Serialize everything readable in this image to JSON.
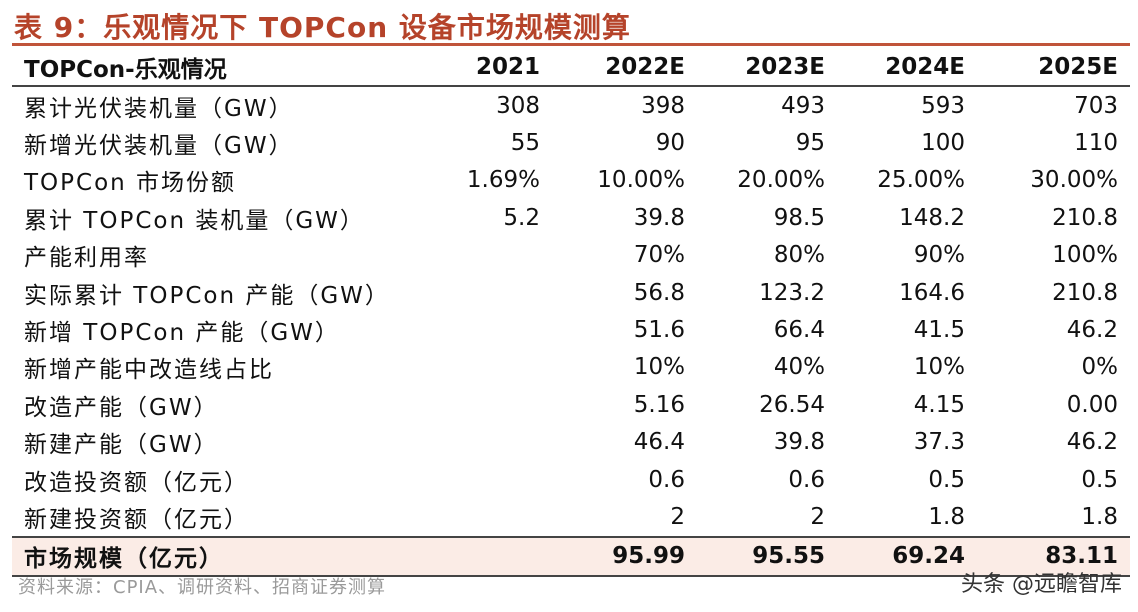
{
  "title": "表 9：乐观情况下 TOPCon 设备市场规模测算",
  "table": {
    "headers": [
      "TOPCon-乐观情况",
      "2021",
      "2022E",
      "2023E",
      "2024E",
      "2025E"
    ],
    "rows": [
      [
        "累计光伏装机量（GW）",
        "308",
        "398",
        "493",
        "593",
        "703"
      ],
      [
        "新增光伏装机量（GW）",
        "55",
        "90",
        "95",
        "100",
        "110"
      ],
      [
        "TOPCon 市场份额",
        "1.69%",
        "10.00%",
        "20.00%",
        "25.00%",
        "30.00%"
      ],
      [
        "累计 TOPCon 装机量（GW）",
        "5.2",
        "39.8",
        "98.5",
        "148.2",
        "210.8"
      ],
      [
        "产能利用率",
        "",
        "70%",
        "80%",
        "90%",
        "100%"
      ],
      [
        "实际累计 TOPCon 产能（GW）",
        "",
        "56.8",
        "123.2",
        "164.6",
        "210.8"
      ],
      [
        "新增 TOPCon 产能（GW）",
        "",
        "51.6",
        "66.4",
        "41.5",
        "46.2"
      ],
      [
        "新增产能中改造线占比",
        "",
        "10%",
        "40%",
        "10%",
        "0%"
      ],
      [
        "改造产能（GW）",
        "",
        "5.16",
        "26.54",
        "4.15",
        "0.00"
      ],
      [
        "新建产能（GW）",
        "",
        "46.4",
        "39.8",
        "37.3",
        "46.2"
      ],
      [
        "改造投资额（亿元）",
        "",
        "0.6",
        "0.6",
        "0.5",
        "0.5"
      ],
      [
        "新建投资额（亿元）",
        "",
        "2",
        "2",
        "1.8",
        "1.8"
      ]
    ],
    "total": [
      "市场规模（亿元）",
      "",
      "95.99",
      "95.55",
      "69.24",
      "83.11"
    ]
  },
  "source": "资料来源：CPIA、调研资料、招商证券测算",
  "watermark": "头条 @远瞻智库",
  "colors": {
    "title": "#b5432a",
    "rule": "#c0543a",
    "total_row_bg": "#fbece6",
    "source_text": "#9a9a9a"
  }
}
